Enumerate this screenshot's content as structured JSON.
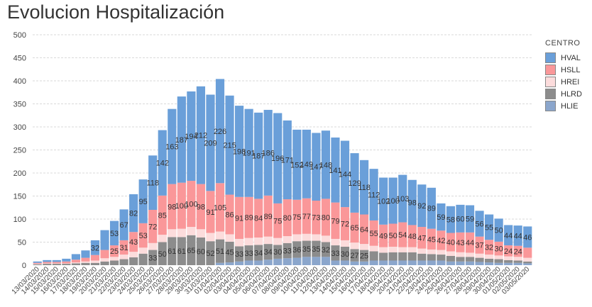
{
  "chart_data": {
    "type": "bar",
    "stacked": true,
    "title": "Evolucion Hospitalización",
    "ylim": [
      0,
      500
    ],
    "yticks": [
      0,
      50,
      100,
      150,
      200,
      250,
      300,
      350,
      400,
      450,
      500
    ],
    "grid": true,
    "legend_title": "CENTRO",
    "legend_position": "right",
    "categories": [
      "13/03/2020",
      "14/03/2020",
      "15/03/2020",
      "16/03/2020",
      "17/03/2020",
      "18/03/2020",
      "19/03/2020",
      "20/03/2020",
      "21/03/2020",
      "22/03/2020",
      "23/03/2020",
      "24/03/2020",
      "25/03/2020",
      "26/03/2020",
      "27/03/2020",
      "28/03/2020",
      "29/03/2020",
      "30/03/2020",
      "31/03/2020",
      "01/04/2020",
      "02/04/2020",
      "03/04/2020",
      "04/04/2020",
      "05/04/2020",
      "06/04/2020",
      "07/04/2020",
      "08/04/2020",
      "09/04/2020",
      "10/04/2020",
      "11/04/2020",
      "12/04/2020",
      "13/04/2020",
      "14/04/2020",
      "15/04/2020",
      "16/04/2020",
      "17/04/2020",
      "18/04/2020",
      "19/04/2020",
      "20/04/2020",
      "21/04/2020",
      "22/04/2020",
      "23/04/2020",
      "24/04/2020",
      "25/04/2020",
      "26/04/2020",
      "27/04/2020",
      "28/04/2020",
      "29/04/2020",
      "30/04/2020",
      "01/05/2020",
      "02/05/2020",
      "03/05/2020"
    ],
    "series": [
      {
        "name": "HLIE",
        "color": "#8BA6CC",
        "values": [
          0,
          0,
          0,
          0,
          0,
          0,
          0,
          0,
          0,
          0,
          0,
          0,
          0,
          0,
          0,
          0,
          0,
          0,
          0,
          5,
          6,
          8,
          10,
          10,
          12,
          14,
          15,
          16,
          18,
          18,
          18,
          10,
          10,
          8,
          8,
          10,
          10,
          10,
          10,
          10,
          10,
          10,
          10,
          8,
          8,
          8,
          7,
          6,
          5,
          5,
          5,
          4
        ]
      },
      {
        "name": "HLRD",
        "color": "#8C8C8C",
        "values": [
          2,
          3,
          3,
          3,
          4,
          5,
          5,
          8,
          10,
          13,
          17,
          25,
          33,
          50,
          61,
          61,
          65,
          60,
          52,
          51,
          45,
          33,
          33,
          34,
          34,
          30,
          33,
          36,
          35,
          35,
          32,
          33,
          30,
          27,
          25,
          20,
          17,
          18,
          18,
          18,
          15,
          14,
          13,
          12,
          10,
          10,
          9,
          8,
          8,
          6,
          5,
          4
        ]
      },
      {
        "name": "HREI",
        "color": "#FCDCDC",
        "values": [
          1,
          1,
          1,
          1,
          2,
          3,
          5,
          7,
          8,
          10,
          12,
          13,
          15,
          16,
          17,
          18,
          18,
          18,
          18,
          17,
          16,
          16,
          16,
          16,
          16,
          15,
          15,
          15,
          15,
          14,
          14,
          14,
          14,
          14,
          13,
          12,
          12,
          12,
          11,
          11,
          11,
          10,
          10,
          10,
          10,
          9,
          9,
          9,
          8,
          8,
          8,
          8
        ]
      },
      {
        "name": "HSLL",
        "color": "#FA9799",
        "values": [
          2,
          3,
          3,
          4,
          6,
          8,
          12,
          18,
          25,
          31,
          43,
          53,
          72,
          85,
          98,
          100,
          100,
          98,
          91,
          105,
          86,
          91,
          89,
          84,
          89,
          75,
          80,
          75,
          77,
          73,
          80,
          79,
          72,
          65,
          64,
          55,
          49,
          50,
          54,
          48,
          47,
          45,
          42,
          40,
          43,
          44,
          37,
          32,
          30,
          24,
          24,
          22
        ]
      },
      {
        "name": "HVAL",
        "color": "#6A9FD9",
        "values": [
          3,
          4,
          4,
          6,
          12,
          16,
          32,
          43,
          53,
          67,
          82,
          95,
          118,
          142,
          163,
          187,
          194,
          212,
          209,
          226,
          215,
          198,
          191,
          187,
          186,
          196,
          171,
          152,
          149,
          147,
          148,
          141,
          144,
          129,
          118,
          112,
          102,
          100,
          103,
          98,
          92,
          89,
          59,
          58,
          60,
          59,
          56,
          55,
          50,
          44,
          44,
          46
        ]
      }
    ],
    "data_labels": {
      "HLRD": [
        "",
        "",
        "",
        "",
        "",
        "",
        "",
        "",
        "",
        "",
        "",
        "",
        "33",
        "50",
        "61",
        "61",
        "65",
        "60",
        "52",
        "51",
        "45",
        "33",
        "33",
        "34",
        "34",
        "30",
        "33",
        "36",
        "35",
        "35",
        "32",
        "33",
        "30",
        "27",
        "25",
        "",
        "",
        "",
        "",
        "",
        "",
        "",
        "",
        "",
        "",
        "",
        "",
        "",
        "",
        "",
        "",
        ""
      ],
      "HSLL": [
        "",
        "",
        "",
        "",
        "",
        "",
        "",
        "",
        "25",
        "31",
        "43",
        "53",
        "72",
        "85",
        "98",
        "100",
        "100",
        "98",
        "91",
        "105",
        "86",
        "91",
        "89",
        "84",
        "89",
        "75",
        "80",
        "75",
        "77",
        "73",
        "80",
        "79",
        "72",
        "65",
        "64",
        "55",
        "49",
        "50",
        "54",
        "48",
        "47",
        "45",
        "42",
        "40",
        "43",
        "44",
        "37",
        "32",
        "30",
        "24",
        "24",
        ""
      ],
      "HVAL": [
        "",
        "",
        "",
        "",
        "",
        "",
        "32",
        "",
        "53",
        "67",
        "82",
        "95",
        "118",
        "142",
        "163",
        "187",
        "194",
        "212",
        "209",
        "226",
        "215",
        "198",
        "191",
        "187",
        "186",
        "196",
        "171",
        "152",
        "149",
        "147",
        "148",
        "141",
        "144",
        "129",
        "118",
        "112",
        "102",
        "100",
        "103",
        "98",
        "92",
        "89",
        "59",
        "58",
        "60",
        "59",
        "56",
        "55",
        "50",
        "44",
        "44",
        "46"
      ]
    }
  }
}
